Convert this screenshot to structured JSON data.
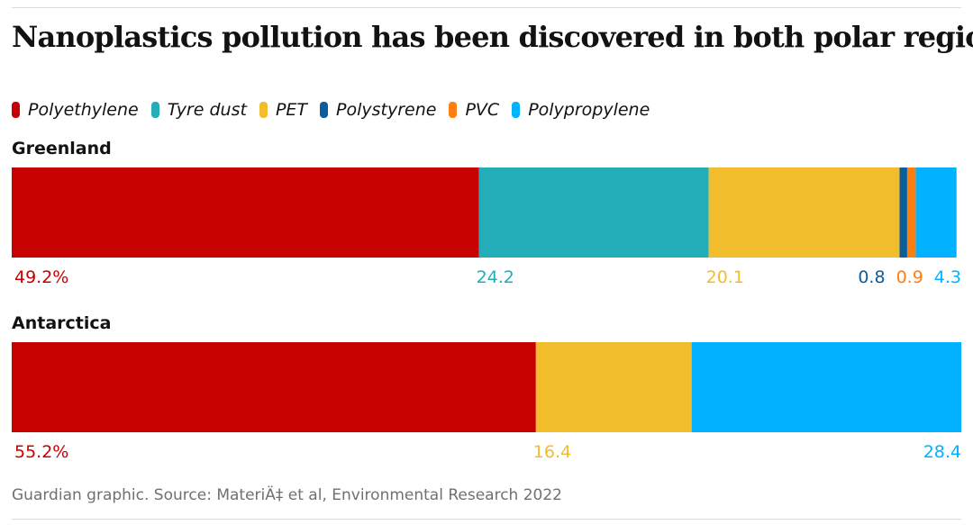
{
  "title": "Nanoplastics pollution has been discovered in both polar regions",
  "source": "Guardian graphic. Source: MateriÄ‡ et al, Environmental Research 2022",
  "chart_data": {
    "type": "bar",
    "orientation": "horizontal",
    "stacked": true,
    "unit": "%",
    "categories": [
      "Greenland",
      "Antarctica"
    ],
    "series": [
      {
        "name": "Polyethylene",
        "color": "#c70000",
        "values": [
          49.2,
          55.2
        ],
        "labels": [
          "49.2%",
          "55.2%"
        ]
      },
      {
        "name": "Tyre dust",
        "color": "#22adb9",
        "values": [
          24.2,
          0
        ],
        "labels": [
          "24.2",
          ""
        ]
      },
      {
        "name": "PET",
        "color": "#f2bd2d",
        "values": [
          20.1,
          16.4
        ],
        "labels": [
          "20.1",
          "16.4"
        ]
      },
      {
        "name": "Polystyrene",
        "color": "#0b5d9b",
        "values": [
          0.8,
          0
        ],
        "labels": [
          "0.8",
          ""
        ]
      },
      {
        "name": "PVC",
        "color": "#ff7f0e",
        "values": [
          0.9,
          0
        ],
        "labels": [
          "0.9",
          ""
        ]
      },
      {
        "name": "Polypropylene",
        "color": "#00b2ff",
        "values": [
          4.3,
          28.4
        ],
        "labels": [
          "4.3",
          "28.4"
        ]
      }
    ],
    "xlim": [
      0,
      100
    ],
    "grid": false,
    "legend_position": "top"
  }
}
